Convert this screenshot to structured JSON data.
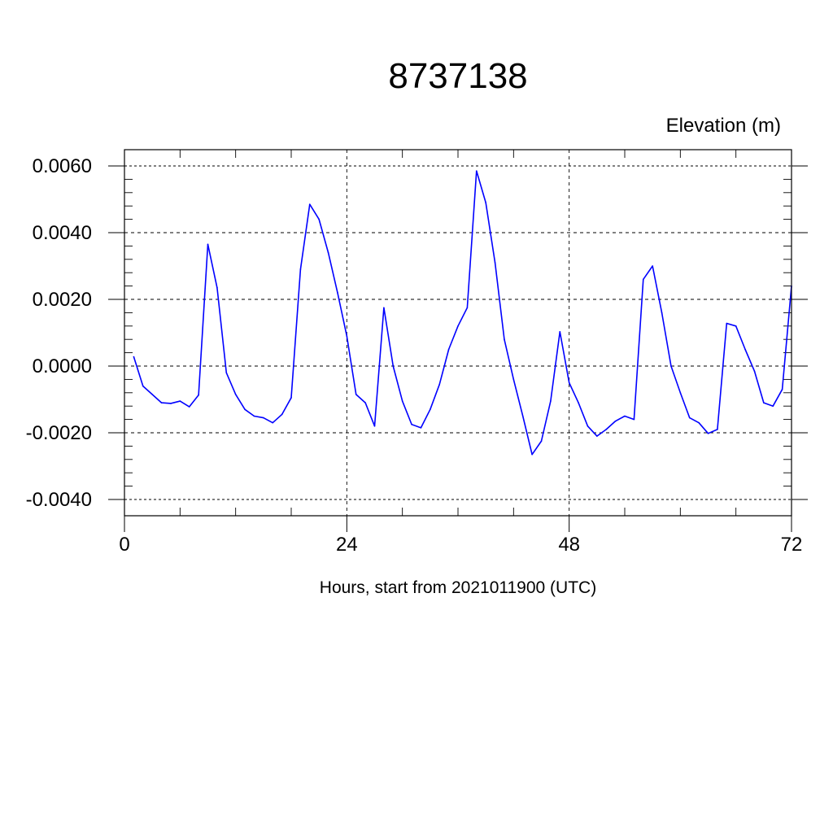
{
  "chart_data": {
    "type": "line",
    "title": "8737138",
    "subtitle": "Elevation (m)",
    "xlabel": "Hours, start from 2021011900 (UTC)",
    "ylabel": "",
    "xlim": [
      0,
      72
    ],
    "ylim": [
      -0.004,
      0.006
    ],
    "xticks": [
      0,
      24,
      48,
      72
    ],
    "xtick_labels": [
      "0",
      "24",
      "48",
      "72"
    ],
    "yticks": [
      -0.004,
      -0.002,
      0,
      0.002,
      0.004,
      0.006
    ],
    "ytick_labels": [
      "-0.0040",
      "-0.0020",
      "0.0000",
      "0.0020",
      "0.0040",
      "0.0060"
    ],
    "grid": true,
    "line_color": "#0000ff",
    "series": [
      {
        "x": [
          1,
          2,
          3,
          4,
          5,
          6,
          7,
          8,
          9,
          10,
          11,
          12,
          13,
          14,
          15,
          16,
          17,
          18,
          19,
          20,
          21,
          22,
          23,
          24,
          25,
          26,
          27,
          28,
          29,
          30,
          31,
          32,
          33,
          34,
          35,
          36,
          37,
          38,
          39,
          40,
          41,
          42,
          43,
          44,
          45,
          46,
          47,
          48,
          49,
          50,
          51,
          52,
          53,
          54,
          55,
          56,
          57,
          58,
          59,
          60,
          61,
          62,
          63,
          64,
          65,
          66,
          67,
          68,
          69,
          70,
          71,
          72
        ],
        "values": [
          0.00028,
          -0.0006,
          -0.00085,
          -0.0011,
          -0.00112,
          -0.00105,
          -0.00122,
          -0.00087,
          0.00365,
          0.00235,
          -0.0002,
          -0.00085,
          -0.0013,
          -0.0015,
          -0.00155,
          -0.0017,
          -0.00145,
          -0.00095,
          0.0029,
          0.00485,
          0.0044,
          0.0034,
          0.0022,
          0.0009,
          -0.00085,
          -0.0011,
          -0.0018,
          0.00175,
          0.0,
          -0.00105,
          -0.00175,
          -0.00185,
          -0.0013,
          -0.00055,
          0.0005,
          0.0012,
          0.00175,
          0.00585,
          0.0049,
          0.0031,
          0.0008,
          -0.0004,
          -0.0015,
          -0.00265,
          -0.00225,
          -0.00105,
          0.00103,
          -0.0005,
          -0.0011,
          -0.0018,
          -0.0021,
          -0.0019,
          -0.00165,
          -0.0015,
          -0.0016,
          0.0026,
          0.003,
          0.0016,
          0.0,
          -0.0008,
          -0.00155,
          -0.0017,
          -0.00202,
          -0.0019,
          0.00128,
          0.0012,
          0.0005,
          -0.00015,
          -0.0011,
          -0.0012,
          -0.0007,
          0.0024
        ]
      }
    ]
  }
}
